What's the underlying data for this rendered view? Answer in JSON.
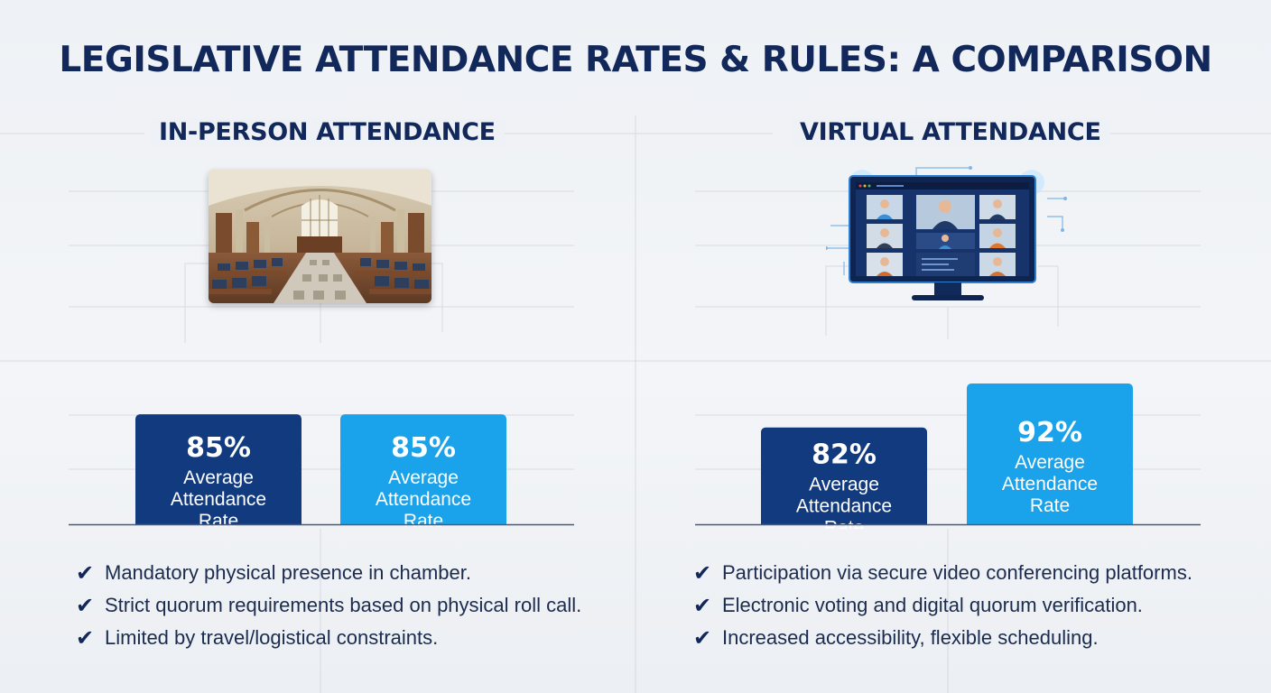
{
  "title": "LEGISLATIVE ATTENDANCE RATES & RULES: A COMPARISON",
  "colors": {
    "title": "#12285a",
    "bar_dark": "#123a7e",
    "bar_light": "#1aa3ea",
    "text": "#1b2c4e",
    "background": "#eef1f5"
  },
  "panels": [
    {
      "heading": "IN-PERSON ATTENDANCE",
      "icon": "legislative-chamber-icon",
      "bullets": [
        "Mandatory physical presence in chamber.",
        "Strict quorum requirements based on physical roll call.",
        "Limited by travel/logistical constraints."
      ]
    },
    {
      "heading": "VIRTUAL ATTENDANCE",
      "icon": "video-conference-monitor-icon",
      "bullets": [
        "Participation via secure video conferencing platforms.",
        "Electronic voting and digital quorum verification.",
        "Increased accessibility, flexible scheduling."
      ]
    }
  ],
  "chart_data": [
    {
      "type": "bar",
      "categories": [
        "",
        ""
      ],
      "values": [
        85,
        85
      ],
      "value_labels": [
        "85%",
        "85%"
      ],
      "bar_labels": [
        "Average\nAttendance\nRate",
        "Average\nAttendance\nRate"
      ],
      "bar_colors": [
        "#123a7e",
        "#1aa3ea"
      ],
      "ylim": [
        0,
        100
      ],
      "grid": true,
      "legend": "none"
    },
    {
      "type": "bar",
      "categories": [
        "",
        ""
      ],
      "values": [
        82,
        92
      ],
      "value_labels": [
        "82%",
        "92%"
      ],
      "bar_labels": [
        "Average\nAttendance\nRate",
        "Average\nAttendance\nRate"
      ],
      "bar_colors": [
        "#123a7e",
        "#1aa3ea"
      ],
      "ylim": [
        0,
        100
      ],
      "grid": true,
      "legend": "none"
    }
  ]
}
